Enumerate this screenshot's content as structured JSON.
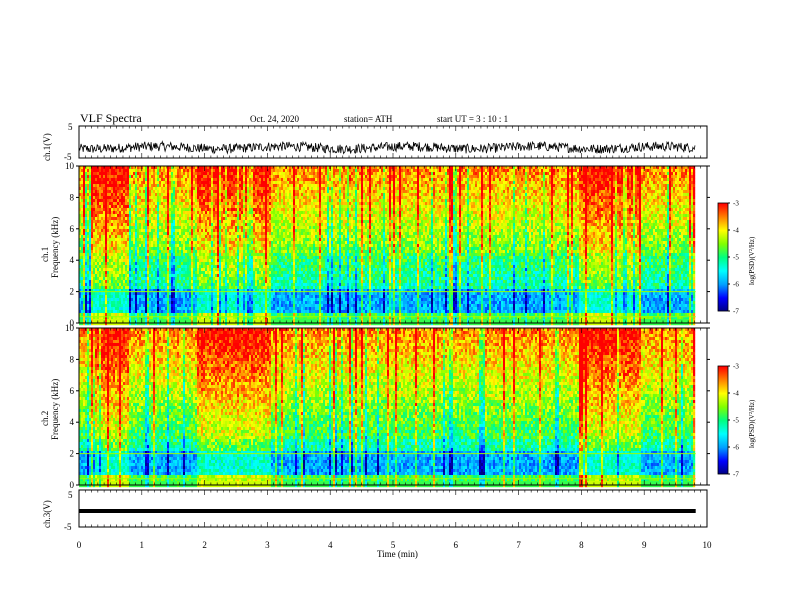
{
  "header": {
    "title": "VLF Spectra",
    "date": "Oct. 24, 2020",
    "station": "station= ATH",
    "start": "start  UT  =   3  : 10 : 1"
  },
  "chart_data": [
    {
      "type": "line",
      "name_label": "ch.1(V)",
      "ylim": [
        -5,
        5
      ],
      "y_ticks": [
        "5",
        "-5"
      ],
      "xlim": [
        0,
        10
      ],
      "description_values": {
        "mean": -0.5,
        "approx_amplitude": 1.5
      }
    },
    {
      "type": "heatmap",
      "ylabel_top": "ch.1",
      "ylabel": "Frequency  (kHz)",
      "ylim": [
        0,
        10
      ],
      "y_ticks": [
        "0",
        "2",
        "4",
        "6",
        "8",
        "10"
      ],
      "xlim": [
        0,
        10
      ],
      "colorbar": {
        "label": "log(PSD)(V²/Hz)",
        "ticks": [
          "-3",
          "-4",
          "-5",
          "-6",
          "-7"
        ],
        "range": [
          -7,
          -3
        ]
      }
    },
    {
      "type": "heatmap",
      "ylabel_top": "ch.2",
      "ylabel": "Frequency  (kHz)",
      "ylim": [
        0,
        10
      ],
      "y_ticks": [
        "0",
        "2",
        "4",
        "6",
        "8",
        "10"
      ],
      "xlim": [
        0,
        10
      ],
      "colorbar": {
        "label": "log(PSD)(V²/Hz)",
        "ticks": [
          "-3",
          "-4",
          "-5",
          "-6",
          "-7"
        ],
        "range": [
          -7,
          -3
        ]
      }
    },
    {
      "type": "line",
      "name_label": "ch.3(V)",
      "ylim": [
        -5,
        5
      ],
      "y_ticks": [
        "5",
        "-5"
      ],
      "xlim": [
        0,
        10
      ],
      "description_values": {
        "level": 0
      }
    }
  ],
  "x_axis": {
    "label": "Time  (min)",
    "ticks": [
      "0",
      "1",
      "2",
      "3",
      "4",
      "5",
      "6",
      "7",
      "8",
      "9",
      "10"
    ],
    "data_end": 9.82
  },
  "colors": {
    "colormap": [
      "#000080",
      "#0000ff",
      "#00a0ff",
      "#00ffff",
      "#00ff80",
      "#80ff00",
      "#ffff00",
      "#ff8000",
      "#ff0000",
      "#ffffff"
    ]
  }
}
